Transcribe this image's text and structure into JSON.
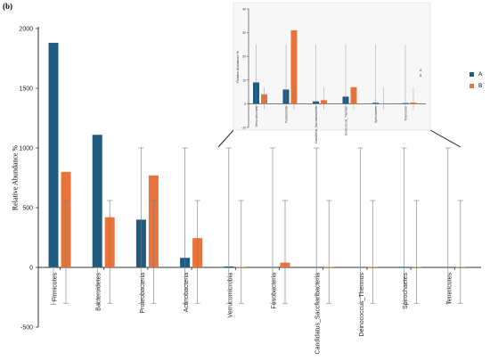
{
  "colors": {
    "A": "#1f5a80",
    "B": "#e8743b",
    "axis": "#333333",
    "err": "#7a7a7a",
    "inset_bg": "#f7f7f7",
    "inset_border": "#dddddd"
  },
  "panel_label": "(b)",
  "chart_data": [
    {
      "type": "bar",
      "categories": [
        "Firmicutes",
        "Bacteroidetes",
        "Proteobacteria",
        "Actinobacteria",
        "Verrucomicrobia",
        "Fusobacteria",
        "Candidatus_Saccharibacteria",
        "Deinococcus_Thermus",
        "Spirochaetes",
        "Tenericutes"
      ],
      "series": [
        {
          "name": "A",
          "values": [
            1880,
            1110,
            400,
            80,
            8,
            3,
            3,
            2,
            5,
            3
          ],
          "error_low": [
            -310,
            -300,
            -300,
            -300,
            -300,
            -300,
            -300,
            -300,
            -300,
            -300
          ],
          "error_high": [
            0,
            0,
            1000,
            1000,
            1000,
            1000,
            1000,
            1000,
            1000,
            1000
          ]
        },
        {
          "name": "B",
          "values": [
            800,
            420,
            770,
            245,
            2,
            40,
            3,
            1,
            1,
            1
          ],
          "error_low": [
            -300,
            -300,
            -300,
            -300,
            -300,
            -300,
            -300,
            -300,
            -300,
            -300
          ],
          "error_high": [
            560,
            560,
            560,
            560,
            560,
            560,
            560,
            560,
            560,
            560
          ]
        }
      ],
      "ylabel": "Relative Abundance %",
      "yticks": [
        -500,
        0,
        500,
        1000,
        1500,
        2000
      ],
      "ylim": [
        -500,
        2000
      ],
      "legend": [
        "A",
        "B"
      ],
      "legend_position": "right"
    },
    {
      "type": "bar",
      "inset": true,
      "categories": [
        "Verrucomicrobia",
        "Fusobacteria",
        "Candidatus_Saccharibacteria",
        "Deinococcus_Thermus",
        "Spirochaetes",
        "Tenericutes"
      ],
      "series": [
        {
          "name": "A",
          "values": [
            9,
            6,
            1,
            3,
            0.4,
            0.3
          ]
        },
        {
          "name": "B",
          "values": [
            4,
            31,
            1.5,
            7,
            0.1,
            0.5
          ]
        }
      ],
      "ylabel": "Relative Abundance %",
      "yticks": [
        -10,
        0,
        10,
        20,
        30,
        40
      ],
      "ylim": [
        -10,
        40
      ]
    }
  ]
}
